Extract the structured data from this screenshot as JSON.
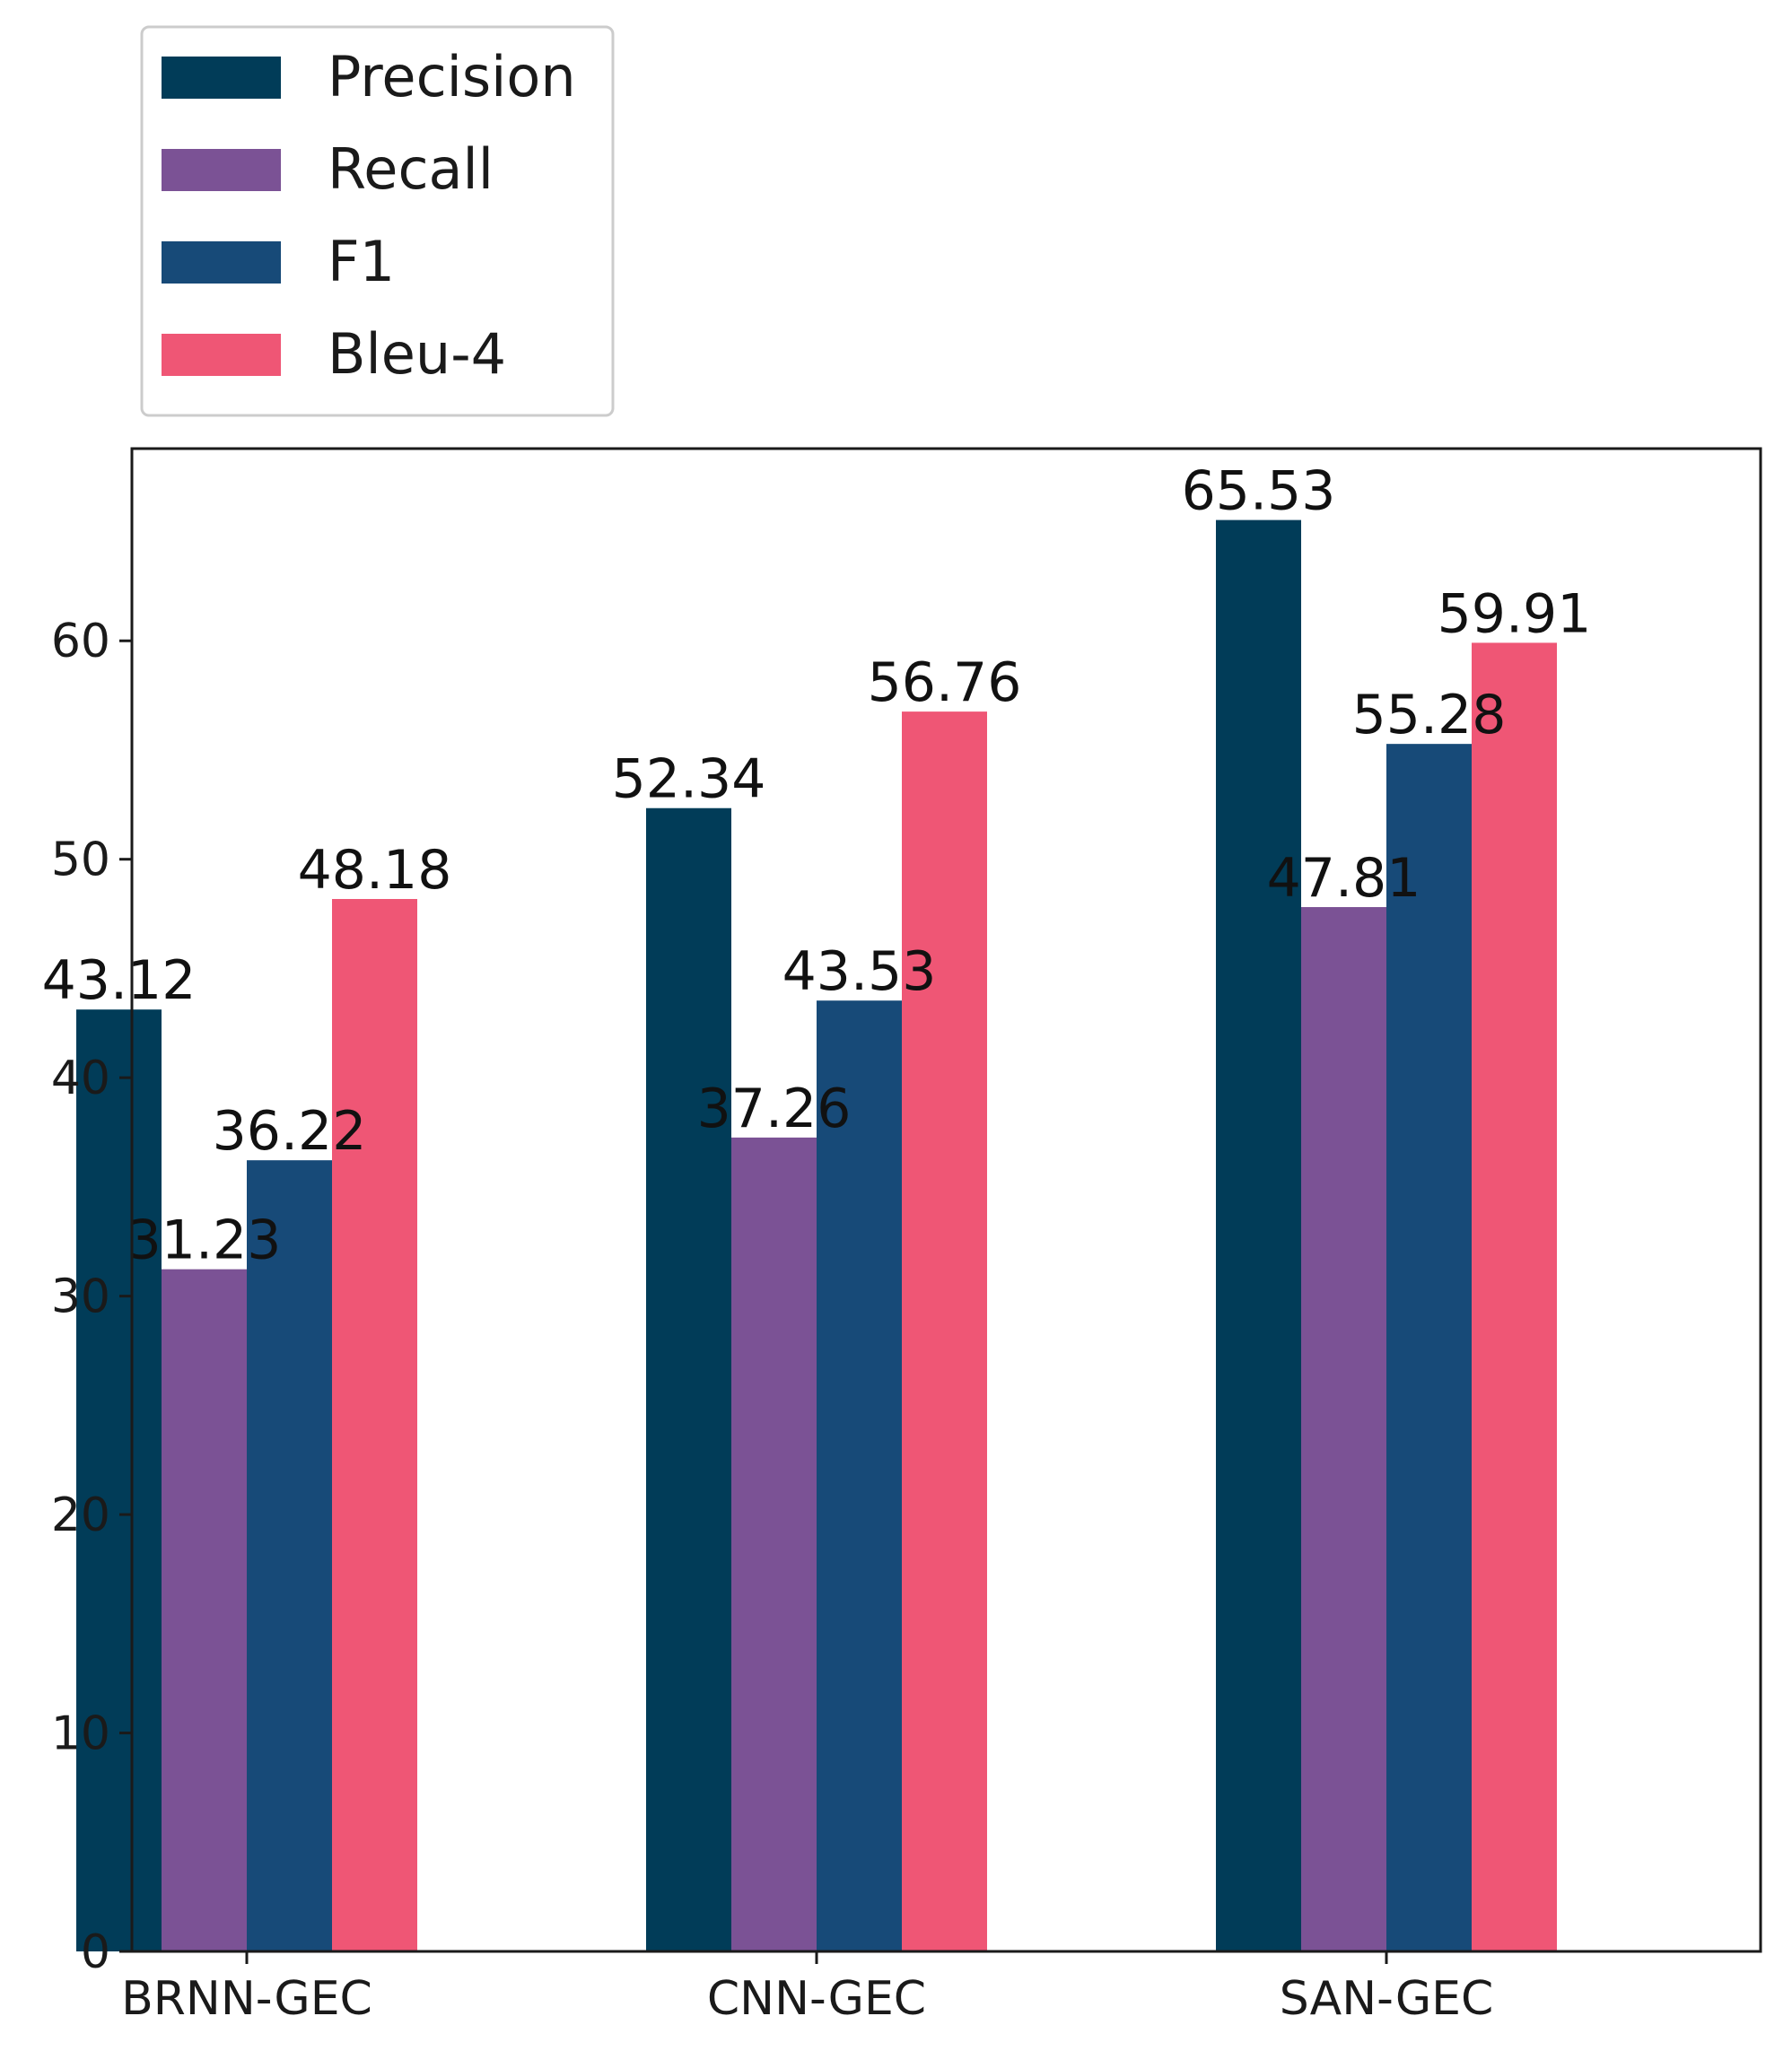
{
  "chart_data": {
    "type": "bar",
    "title": "",
    "xlabel": "",
    "ylabel": "",
    "categories": [
      "BRNN-GEC",
      "CNN-GEC",
      "SAN-GEC"
    ],
    "series": [
      {
        "name": "Precision",
        "color": "#013c58",
        "values": [
          43.12,
          52.34,
          65.53
        ]
      },
      {
        "name": "Recall",
        "color": "#7b5295",
        "values": [
          31.23,
          37.26,
          47.81
        ]
      },
      {
        "name": "F1",
        "color": "#174a78",
        "values": [
          36.22,
          43.53,
          55.28
        ]
      },
      {
        "name": "Bleu-4",
        "color": "#ef5675",
        "values": [
          48.18,
          56.76,
          59.91
        ]
      }
    ],
    "ylim": [
      0,
      68.8
    ],
    "yticks": [
      0,
      10,
      20,
      30,
      40,
      50,
      60
    ],
    "grid": false,
    "legend_position": "top-left, outside above axes"
  }
}
